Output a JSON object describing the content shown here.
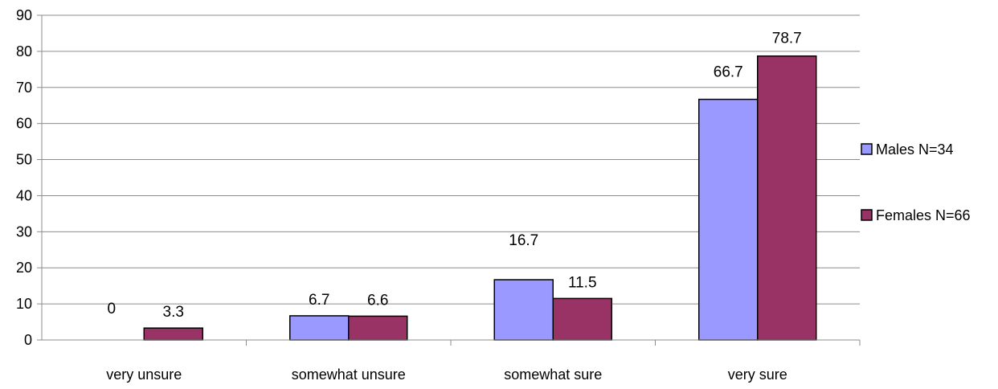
{
  "chart_data": {
    "type": "bar",
    "title": "",
    "xlabel": "",
    "ylabel": "",
    "ylim": [
      0,
      90
    ],
    "yticks": [
      0,
      10,
      20,
      30,
      40,
      50,
      60,
      70,
      80,
      90
    ],
    "grid": true,
    "legend_position": "right",
    "categories": [
      "very unsure",
      "somewhat unsure",
      "somewhat sure",
      "very sure"
    ],
    "series": [
      {
        "name": "Males N=34",
        "color": "#9999ff",
        "values": [
          0,
          6.7,
          16.7,
          66.7
        ],
        "labels": [
          "0",
          "6.7",
          "16.7",
          "66.7"
        ]
      },
      {
        "name": "Females N=66",
        "color": "#993366",
        "values": [
          3.3,
          6.6,
          11.5,
          78.7
        ],
        "labels": [
          "3.3",
          "6.6",
          "11.5",
          "78.7"
        ]
      }
    ]
  }
}
